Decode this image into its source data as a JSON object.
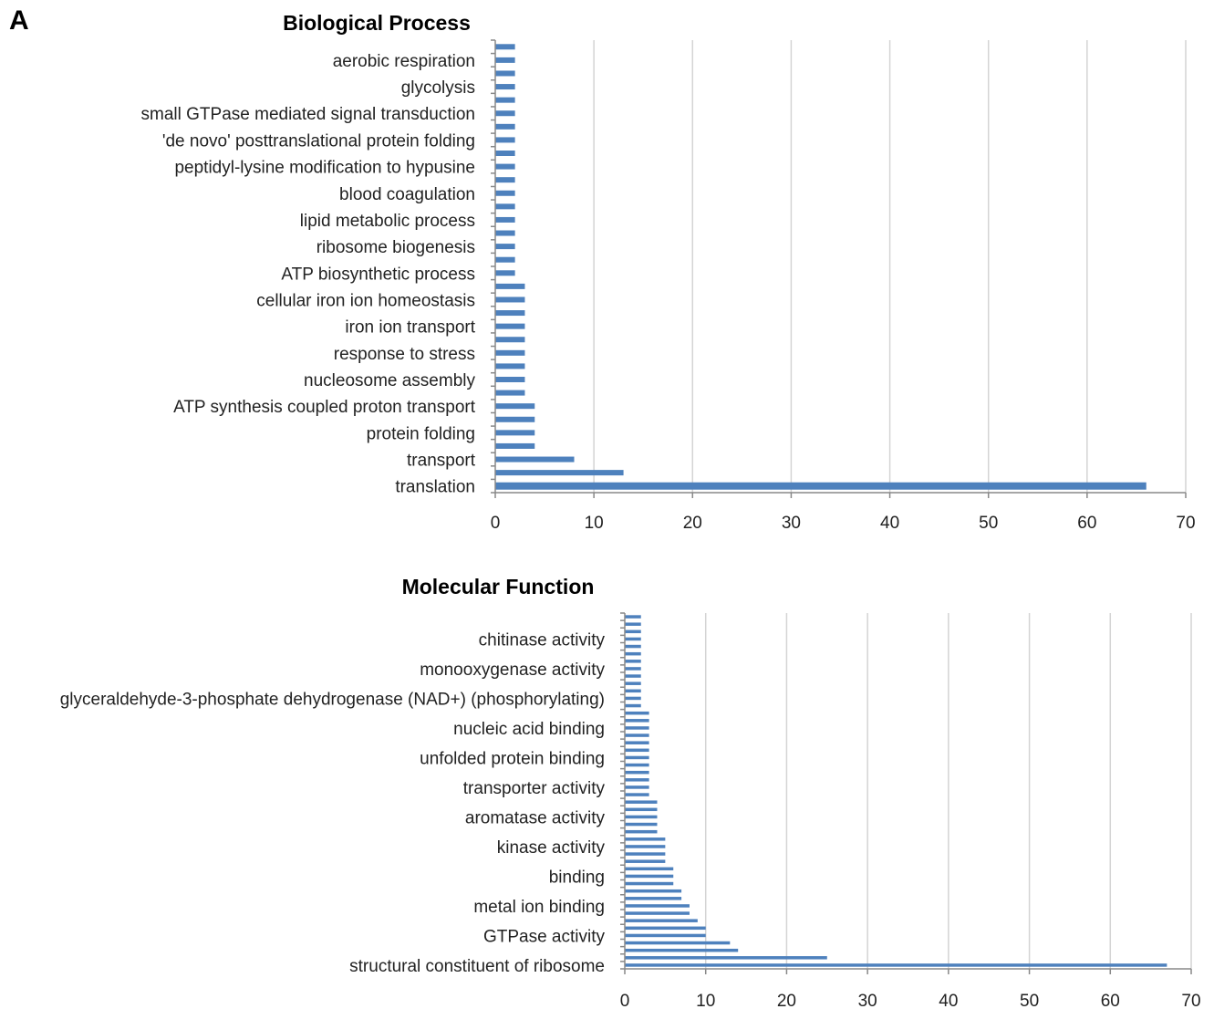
{
  "panel_label": "A",
  "colors": {
    "bar": "#4e81bd",
    "grid": "#d4d4d4",
    "axis": "#888888"
  },
  "chart_data": [
    {
      "type": "bar",
      "orientation": "horizontal",
      "title": "Biological Process",
      "xlabel": "",
      "ylabel": "",
      "xlim": [
        0,
        70
      ],
      "xticks": [
        0,
        10,
        20,
        30,
        40,
        50,
        60,
        70
      ],
      "grid": true,
      "categories": [
        "translation",
        "",
        "transport",
        "",
        "protein folding",
        "",
        "ATP synthesis coupled proton transport",
        "",
        "nucleosome assembly",
        "",
        "response to stress",
        "",
        "iron ion transport",
        "",
        "cellular iron ion homeostasis",
        "",
        "ATP biosynthetic process",
        "",
        "ribosome biogenesis",
        "",
        "lipid metabolic process",
        "",
        "blood coagulation",
        "",
        "peptidyl-lysine modification to hypusine",
        "",
        "'de novo' posttranslational protein folding",
        "",
        "small GTPase mediated signal transduction",
        "",
        "glycolysis",
        "",
        "aerobic respiration",
        ""
      ],
      "values": [
        66,
        13,
        8,
        4,
        4,
        4,
        4,
        3,
        3,
        3,
        3,
        3,
        3,
        3,
        3,
        3,
        2,
        2,
        2,
        2,
        2,
        2,
        2,
        2,
        2,
        2,
        2,
        2,
        2,
        2,
        2,
        2,
        2,
        2
      ]
    },
    {
      "type": "bar",
      "orientation": "horizontal",
      "title": "Molecular Function",
      "xlabel": "",
      "ylabel": "",
      "xlim": [
        0,
        70
      ],
      "xticks": [
        0,
        10,
        20,
        30,
        40,
        50,
        60,
        70
      ],
      "grid": true,
      "categories": [
        "structural constituent of ribosome",
        "",
        "",
        "",
        "GTPase activity",
        "",
        "",
        "",
        "metal ion binding",
        "",
        "",
        "",
        "binding",
        "",
        "",
        "",
        "kinase activity",
        "",
        "",
        "",
        "aromatase activity",
        "",
        "",
        "",
        "transporter activity",
        "",
        "",
        "",
        "unfolded protein binding",
        "",
        "",
        "",
        "nucleic acid binding",
        "",
        "",
        "",
        "glyceraldehyde-3-phosphate dehydrogenase (NAD+) (phosphorylating)",
        "",
        "",
        "",
        "monooxygenase activity",
        "",
        "",
        "",
        "chitinase activity",
        "",
        "",
        ""
      ],
      "values": [
        67,
        25,
        14,
        13,
        10,
        10,
        9,
        8,
        8,
        7,
        7,
        6,
        6,
        6,
        5,
        5,
        5,
        5,
        4,
        4,
        4,
        4,
        4,
        3,
        3,
        3,
        3,
        3,
        3,
        3,
        3,
        3,
        3,
        3,
        3,
        2,
        2,
        2,
        2,
        2,
        2,
        2,
        2,
        2,
        2,
        2,
        2,
        2
      ]
    }
  ]
}
